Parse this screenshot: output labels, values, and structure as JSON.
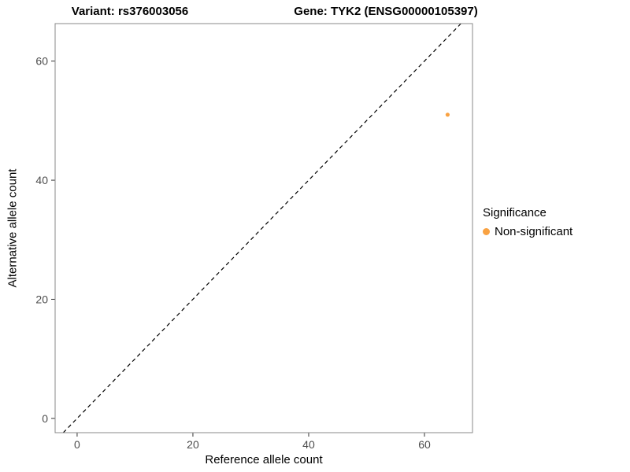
{
  "titles": {
    "variant": "Variant: rs376003056",
    "gene": "Gene: TYK2 (ENSG00000105397)"
  },
  "axes": {
    "x_label": "Reference allele count",
    "y_label": "Alternative allele count"
  },
  "legend": {
    "title": "Significance",
    "items": [
      {
        "label": "Non-significant",
        "color": "#F9A242"
      }
    ]
  },
  "chart_data": {
    "type": "scatter",
    "title_left": "Variant: rs376003056",
    "title_right": "Gene: TYK2 (ENSG00000105397)",
    "xlabel": "Reference allele count",
    "ylabel": "Alternative allele count",
    "x_ticks": [
      0,
      20,
      40,
      60
    ],
    "y_ticks": [
      0,
      20,
      40,
      60
    ],
    "xlim": [
      -3.8,
      68.3
    ],
    "ylim": [
      -2.4,
      66.3
    ],
    "grid": false,
    "legend_position": "right",
    "reference_line": {
      "type": "identity",
      "equation": "y = x",
      "style": "dashed",
      "color": "#000000"
    },
    "series": [
      {
        "name": "Non-significant",
        "color": "#F9A242",
        "points": [
          {
            "x": 64,
            "y": 51
          }
        ]
      }
    ],
    "point_radius": 2.6,
    "panel_border_color": "#888888",
    "tick_color": "#333333",
    "tick_label_color": "#4d4d4d"
  }
}
